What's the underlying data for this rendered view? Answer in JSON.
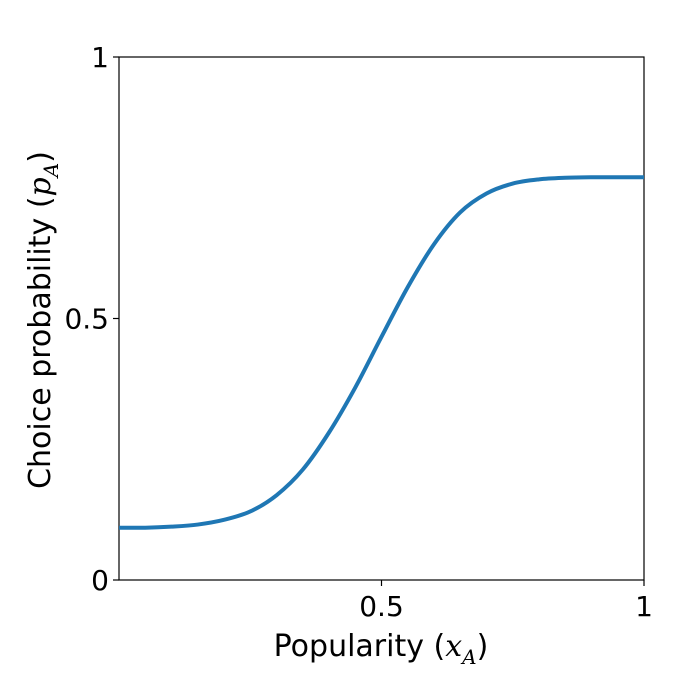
{
  "chart_data": {
    "type": "line",
    "title": "",
    "xlabel": {
      "text": "Popularity (",
      "var": "x",
      "sub": "A",
      "close": ")"
    },
    "ylabel": {
      "text": "Choice probability (",
      "var": "p",
      "sub": "A",
      "close": ")"
    },
    "xlim": [
      0,
      1
    ],
    "ylim": [
      0,
      1
    ],
    "xticks": [
      {
        "value": 0.5,
        "label": "0.5"
      },
      {
        "value": 1,
        "label": "1"
      }
    ],
    "yticks": [
      {
        "value": 0,
        "label": "0"
      },
      {
        "value": 0.5,
        "label": "0.5"
      },
      {
        "value": 1,
        "label": "1"
      }
    ],
    "grid": false,
    "series": [
      {
        "color": "#1f77b4",
        "x": [
          0,
          0.05,
          0.1,
          0.15,
          0.2,
          0.25,
          0.3,
          0.35,
          0.4,
          0.45,
          0.5,
          0.55,
          0.6,
          0.65,
          0.7,
          0.75,
          0.8,
          0.85,
          0.9,
          0.95,
          1
        ],
        "y": [
          0.1,
          0.1,
          0.102,
          0.106,
          0.115,
          0.131,
          0.162,
          0.211,
          0.282,
          0.368,
          0.465,
          0.56,
          0.642,
          0.703,
          0.739,
          0.758,
          0.766,
          0.769,
          0.77,
          0.77,
          0.77
        ]
      }
    ]
  }
}
